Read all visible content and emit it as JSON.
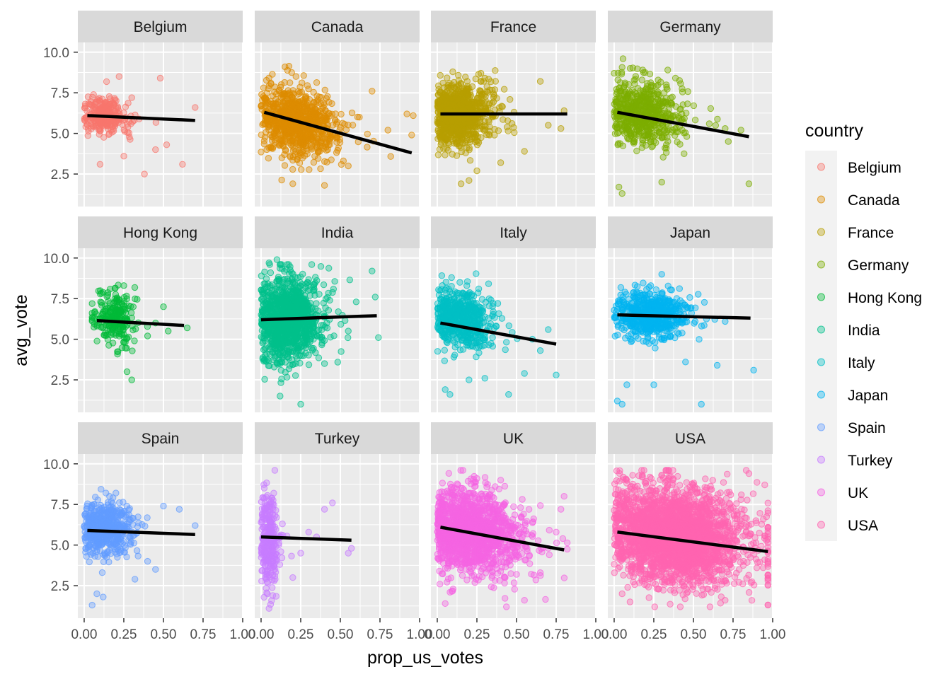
{
  "chart_data": {
    "type": "scatter",
    "facet_by": "country",
    "xlabel": "prop_us_votes",
    "ylabel": "avg_vote",
    "xlim": [
      -0.04,
      1.0
    ],
    "ylim": [
      0.5,
      10.6
    ],
    "x_ticks": [
      0.0,
      0.25,
      0.5,
      0.75,
      1.0
    ],
    "x_tick_labels": [
      "0.00",
      "0.25",
      "0.50",
      "0.75",
      "1.00"
    ],
    "y_ticks": [
      2.5,
      5.0,
      7.5,
      10.0
    ],
    "y_tick_labels": [
      "2.5",
      "5.0",
      "7.5",
      "10.0"
    ],
    "grid": true,
    "legend": {
      "title": "country",
      "placement": "right"
    },
    "trend_line_color": "#000000",
    "panel_background": "#ebebeb",
    "strip_background": "#d9d9d9",
    "panels": [
      {
        "name": "Belgium",
        "color": "#F8766D",
        "n": 260,
        "center": [
          0.12,
          6.1
        ],
        "spread": [
          0.07,
          0.55
        ],
        "x_range": [
          0.0,
          0.72
        ],
        "trend": {
          "x": [
            0.02,
            0.7
          ],
          "y": [
            6.1,
            5.8
          ]
        },
        "outliers": [
          [
            0.22,
            8.5
          ],
          [
            0.48,
            8.4
          ],
          [
            0.7,
            6.6
          ],
          [
            0.62,
            3.1
          ],
          [
            0.38,
            2.5
          ],
          [
            0.45,
            4.0
          ],
          [
            0.25,
            3.6
          ],
          [
            0.3,
            7.2
          ],
          [
            0.52,
            4.3
          ],
          [
            0.1,
            3.1
          ]
        ]
      },
      {
        "name": "Canada",
        "color": "#DE8C00",
        "n": 900,
        "center": [
          0.22,
          5.7
        ],
        "spread": [
          0.12,
          1.0
        ],
        "x_range": [
          0.0,
          0.97
        ],
        "trend": {
          "x": [
            0.02,
            0.95
          ],
          "y": [
            6.3,
            3.8
          ]
        },
        "outliers": [
          [
            0.92,
            6.2
          ],
          [
            0.96,
            6.1
          ],
          [
            0.95,
            4.9
          ],
          [
            0.7,
            7.6
          ],
          [
            0.62,
            6.0
          ],
          [
            0.8,
            5.2
          ],
          [
            0.2,
            1.9
          ],
          [
            0.4,
            1.8
          ],
          [
            0.22,
            8.5
          ],
          [
            0.55,
            3.0
          ]
        ]
      },
      {
        "name": "France",
        "color": "#B79F00",
        "n": 900,
        "center": [
          0.14,
          6.2
        ],
        "spread": [
          0.09,
          0.95
        ],
        "x_range": [
          0.0,
          0.82
        ],
        "trend": {
          "x": [
            0.02,
            0.82
          ],
          "y": [
            6.2,
            6.2
          ]
        },
        "outliers": [
          [
            0.65,
            8.2
          ],
          [
            0.8,
            6.4
          ],
          [
            0.78,
            5.3
          ],
          [
            0.15,
            1.9
          ],
          [
            0.2,
            2.1
          ],
          [
            0.4,
            3.2
          ],
          [
            0.55,
            3.9
          ],
          [
            0.7,
            5.5
          ],
          [
            0.3,
            8.4
          ],
          [
            0.25,
            2.7
          ]
        ]
      },
      {
        "name": "Germany",
        "color": "#7CAE00",
        "n": 600,
        "center": [
          0.18,
          6.3
        ],
        "spread": [
          0.11,
          0.95
        ],
        "x_range": [
          0.0,
          0.86
        ],
        "trend": {
          "x": [
            0.02,
            0.85
          ],
          "y": [
            6.3,
            4.8
          ]
        },
        "outliers": [
          [
            0.85,
            1.9
          ],
          [
            0.03,
            1.7
          ],
          [
            0.05,
            1.3
          ],
          [
            0.8,
            5.2
          ],
          [
            0.7,
            5.3
          ],
          [
            0.72,
            4.5
          ],
          [
            0.0,
            8.7
          ],
          [
            0.18,
            8.9
          ],
          [
            0.6,
            5.6
          ],
          [
            0.3,
            2.0
          ]
        ]
      },
      {
        "name": "Hong Kong",
        "color": "#00BA38",
        "n": 230,
        "center": [
          0.19,
          6.3
        ],
        "spread": [
          0.06,
          0.8
        ],
        "x_range": [
          0.05,
          0.66
        ],
        "trend": {
          "x": [
            0.08,
            0.63
          ],
          "y": [
            6.15,
            5.85
          ]
        },
        "outliers": [
          [
            0.3,
            2.5
          ],
          [
            0.27,
            3.0
          ],
          [
            0.5,
            7.0
          ],
          [
            0.53,
            5.5
          ],
          [
            0.65,
            5.7
          ],
          [
            0.25,
            8.3
          ],
          [
            0.4,
            5.2
          ],
          [
            0.45,
            6.0
          ]
        ]
      },
      {
        "name": "India",
        "color": "#00C08B",
        "n": 1100,
        "center": [
          0.17,
          6.2
        ],
        "spread": [
          0.09,
          1.3
        ],
        "x_range": [
          0.0,
          0.75
        ],
        "trend": {
          "x": [
            0.0,
            0.73
          ],
          "y": [
            6.2,
            6.45
          ]
        },
        "outliers": [
          [
            0.7,
            9.2
          ],
          [
            0.72,
            7.6
          ],
          [
            0.74,
            5.1
          ],
          [
            0.1,
            9.9
          ],
          [
            0.25,
            1.0
          ],
          [
            0.12,
            1.5
          ],
          [
            0.6,
            7.3
          ],
          [
            0.55,
            5.5
          ],
          [
            0.05,
            9.7
          ],
          [
            0.4,
            3.5
          ]
        ]
      },
      {
        "name": "Italy",
        "color": "#00BFC4",
        "n": 550,
        "center": [
          0.15,
          6.3
        ],
        "spread": [
          0.09,
          0.9
        ],
        "x_range": [
          0.0,
          0.78
        ],
        "trend": {
          "x": [
            0.02,
            0.75
          ],
          "y": [
            6.0,
            4.7
          ]
        },
        "outliers": [
          [
            0.75,
            2.8
          ],
          [
            0.55,
            2.9
          ],
          [
            0.45,
            1.6
          ],
          [
            0.05,
            1.9
          ],
          [
            0.08,
            1.6
          ],
          [
            0.65,
            4.3
          ],
          [
            0.6,
            5.0
          ],
          [
            0.2,
            2.5
          ],
          [
            0.3,
            2.6
          ],
          [
            0.7,
            5.6
          ]
        ]
      },
      {
        "name": "Japan",
        "color": "#00B4F0",
        "n": 600,
        "center": [
          0.23,
          6.5
        ],
        "spread": [
          0.1,
          0.7
        ],
        "x_range": [
          0.0,
          0.9
        ],
        "trend": {
          "x": [
            0.02,
            0.86
          ],
          "y": [
            6.5,
            6.3
          ]
        },
        "outliers": [
          [
            0.55,
            1.0
          ],
          [
            0.02,
            1.2
          ],
          [
            0.05,
            1.0
          ],
          [
            0.08,
            2.2
          ],
          [
            0.88,
            3.1
          ],
          [
            0.65,
            3.4
          ],
          [
            0.3,
            9.0
          ],
          [
            0.45,
            3.6
          ],
          [
            0.25,
            2.2
          ],
          [
            0.7,
            6.1
          ]
        ]
      },
      {
        "name": "Spain",
        "color": "#619CFF",
        "n": 500,
        "center": [
          0.14,
          6.0
        ],
        "spread": [
          0.08,
          0.8
        ],
        "x_range": [
          0.0,
          0.72
        ],
        "trend": {
          "x": [
            0.02,
            0.7
          ],
          "y": [
            5.9,
            5.65
          ]
        },
        "outliers": [
          [
            0.7,
            6.2
          ],
          [
            0.6,
            7.2
          ],
          [
            0.5,
            7.4
          ],
          [
            0.05,
            1.3
          ],
          [
            0.08,
            2.0
          ],
          [
            0.12,
            1.8
          ],
          [
            0.32,
            2.9
          ],
          [
            0.4,
            4.0
          ],
          [
            0.45,
            3.5
          ],
          [
            0.2,
            8.2
          ]
        ]
      },
      {
        "name": "Turkey",
        "color": "#C77CFF",
        "n": 300,
        "center": [
          0.05,
          5.3
        ],
        "spread": [
          0.03,
          1.4
        ],
        "x_range": [
          0.0,
          0.6
        ],
        "trend": {
          "x": [
            0.0,
            0.57
          ],
          "y": [
            5.5,
            5.3
          ]
        },
        "outliers": [
          [
            0.55,
            4.5
          ],
          [
            0.57,
            4.8
          ],
          [
            0.4,
            7.2
          ],
          [
            0.45,
            7.6
          ],
          [
            0.3,
            5.8
          ],
          [
            0.35,
            5.5
          ],
          [
            0.2,
            3.0
          ],
          [
            0.25,
            4.5
          ],
          [
            0.05,
            1.1
          ],
          [
            0.02,
            8.5
          ]
        ]
      },
      {
        "name": "UK",
        "color": "#F564E3",
        "n": 1400,
        "center": [
          0.22,
          5.8
        ],
        "spread": [
          0.14,
          1.25
        ],
        "x_range": [
          0.0,
          0.82
        ],
        "trend": {
          "x": [
            0.02,
            0.8
          ],
          "y": [
            6.1,
            4.7
          ]
        },
        "outliers": [
          [
            0.8,
            8.0
          ],
          [
            0.78,
            7.2
          ],
          [
            0.65,
            3.3
          ],
          [
            0.05,
            1.4
          ],
          [
            0.25,
            9.1
          ],
          [
            0.7,
            4.8
          ],
          [
            0.55,
            1.6
          ],
          [
            0.4,
            9.0
          ],
          [
            0.75,
            5.8
          ],
          [
            0.1,
            2.3
          ]
        ]
      },
      {
        "name": "USA",
        "color": "#FF64B0",
        "n": 2600,
        "center": [
          0.38,
          5.6
        ],
        "spread": [
          0.2,
          1.45
        ],
        "x_range": [
          0.0,
          0.97
        ],
        "trend": {
          "x": [
            0.02,
            0.97
          ],
          "y": [
            5.8,
            4.6
          ]
        },
        "outliers": [
          [
            0.85,
            9.4
          ],
          [
            0.3,
            9.3
          ],
          [
            0.95,
            8.7
          ],
          [
            0.95,
            4.1
          ],
          [
            0.05,
            2.0
          ],
          [
            0.1,
            1.5
          ],
          [
            0.7,
            1.6
          ],
          [
            0.8,
            7.8
          ],
          [
            0.2,
            8.8
          ],
          [
            0.9,
            3.6
          ]
        ]
      }
    ]
  }
}
